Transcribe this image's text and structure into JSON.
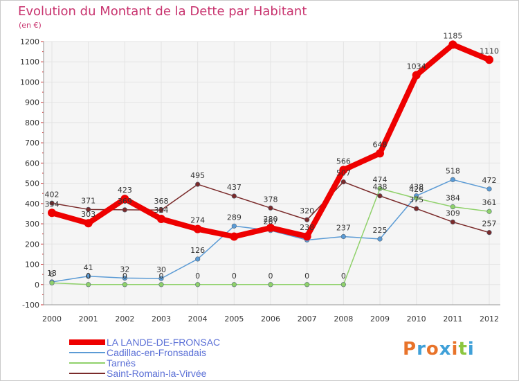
{
  "title": "Evolution du Montant de la Dette par Habitant",
  "subtitle": "(en €)",
  "colors": {
    "title": "#c8336e",
    "axis_labels": "#333333",
    "grid": "#e3e3e3",
    "plot_bg": "#f5f5f5"
  },
  "logo": {
    "letters": [
      "P",
      "r",
      "o",
      "x",
      "i",
      "t",
      "i"
    ],
    "colors": [
      "#e8732a",
      "#3fa0d8",
      "#e8732a",
      "#3fa0d8",
      "#e8732a",
      "#8cc63f",
      "#3fa0d8"
    ]
  },
  "chart_data": {
    "type": "line",
    "x": [
      "2000",
      "2001",
      "2002",
      "2003",
      "2004",
      "2005",
      "2006",
      "2007",
      "2008",
      "2009",
      "2010",
      "2011",
      "2012"
    ],
    "ylim": [
      -100,
      1200
    ],
    "yticks": [
      -100,
      0,
      100,
      200,
      300,
      400,
      500,
      600,
      700,
      800,
      900,
      1000,
      1100,
      1200
    ],
    "grid": true,
    "legend_position": "bottom-left",
    "series": [
      {
        "name": "LA LANDE-DE-FRONSAC",
        "color": "#ee0000",
        "width": 8,
        "values": [
          354,
          303,
          423,
          324,
          274,
          237,
          280,
          238,
          566,
          648,
          1034,
          1185,
          1110
        ],
        "labels": [
          "354",
          "303",
          "423",
          "324",
          "274",
          "",
          "280",
          "238",
          "566",
          "648",
          "1034",
          "1185",
          "1110"
        ]
      },
      {
        "name": "Cadillac-en-Fronsadais",
        "color": "#5b9bd5",
        "width": 1.5,
        "values": [
          13,
          41,
          32,
          30,
          126,
          289,
          267,
          220,
          237,
          225,
          438,
          518,
          472
        ],
        "labels": [
          "13",
          "41",
          "32",
          "30",
          "126",
          "289",
          "267",
          "",
          "237",
          "225",
          "438",
          "518",
          "472"
        ]
      },
      {
        "name": "Tarnès",
        "color": "#8fd16a",
        "width": 1.5,
        "values": [
          8,
          0,
          0,
          0,
          0,
          0,
          0,
          0,
          0,
          474,
          426,
          384,
          361
        ],
        "labels": [
          "8",
          "0",
          "0",
          "0",
          "0",
          "0",
          "0",
          "0",
          "0",
          "474",
          "426",
          "384",
          "361"
        ]
      },
      {
        "name": "Saint-Romain-la-Virvée",
        "color": "#7a2a2a",
        "width": 1.5,
        "values": [
          402,
          371,
          369,
          368,
          495,
          437,
          378,
          320,
          507,
          438,
          375,
          309,
          257
        ],
        "labels": [
          "402",
          "371",
          "369",
          "368",
          "495",
          "437",
          "378",
          "320",
          "507",
          "438",
          "375",
          "309",
          "257"
        ]
      }
    ]
  }
}
